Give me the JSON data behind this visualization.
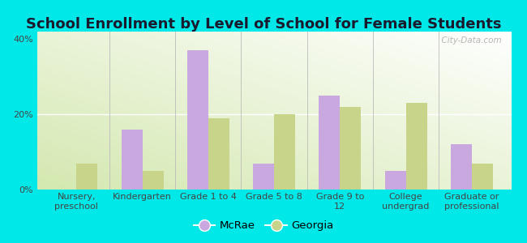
{
  "title": "School Enrollment by Level of School for Female Students",
  "categories": [
    "Nursery,\npreschool",
    "Kindergarten",
    "Grade 1 to 4",
    "Grade 5 to 8",
    "Grade 9 to\n12",
    "College\nundergrad",
    "Graduate or\nprofessional"
  ],
  "mcrae": [
    0,
    16,
    37,
    7,
    25,
    5,
    12
  ],
  "georgia": [
    7,
    5,
    19,
    20,
    22,
    23,
    7
  ],
  "mcrae_color": "#c9a8e0",
  "georgia_color": "#c8d48a",
  "background_color": "#00e8e8",
  "ylim": [
    0,
    42
  ],
  "yticks": [
    0,
    20,
    40
  ],
  "ytick_labels": [
    "0%",
    "20%",
    "40%"
  ],
  "bar_width": 0.32,
  "title_fontsize": 13,
  "tick_fontsize": 8,
  "legend_fontsize": 9.5,
  "watermark": "  City-Data.com"
}
